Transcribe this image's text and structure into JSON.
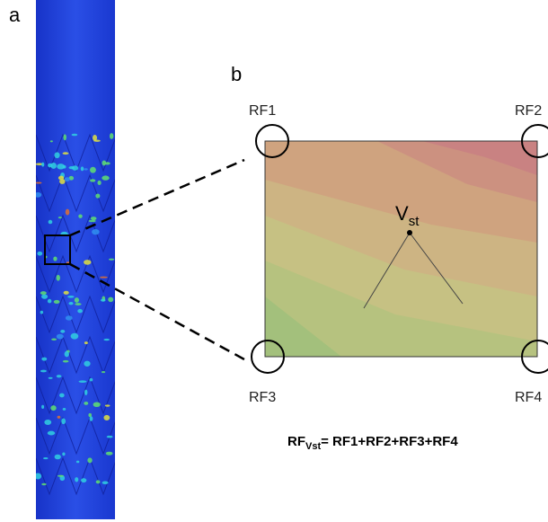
{
  "panel_a": {
    "label": "a"
  },
  "panel_b": {
    "label": "b",
    "corners": [
      "RF1",
      "RF2",
      "RF3",
      "RF4"
    ],
    "point": {
      "label": "V",
      "subscript": "st"
    },
    "formula": {
      "lhs": "RF",
      "lhs_subscript": "Vst",
      "rhs": "= RF1+RF2+RF3+RF4"
    }
  }
}
